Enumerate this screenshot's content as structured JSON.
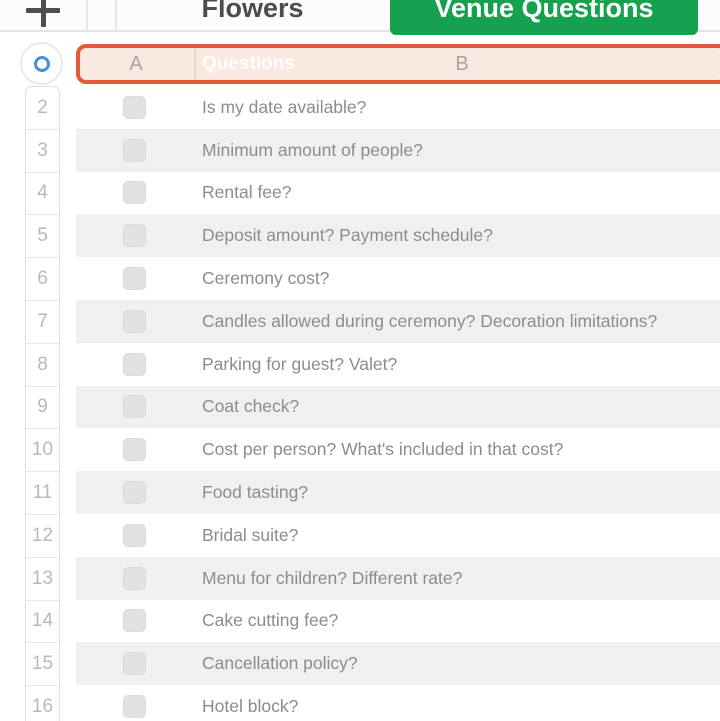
{
  "tabbar": {
    "tabs": [
      {
        "label": "Flowers",
        "active": false
      },
      {
        "label": "Venue Questions",
        "active": true
      }
    ]
  },
  "spreadsheet": {
    "column_letters": {
      "a": "A",
      "b": "B"
    },
    "header_title": "Questions",
    "rows": [
      {
        "number": "2",
        "question": "Is my date available?",
        "checked": false
      },
      {
        "number": "3",
        "question": "Minimum amount of people?",
        "checked": false
      },
      {
        "number": "4",
        "question": "Rental fee?",
        "checked": false
      },
      {
        "number": "5",
        "question": "Deposit amount? Payment schedule?",
        "checked": false
      },
      {
        "number": "6",
        "question": "Ceremony cost?",
        "checked": false
      },
      {
        "number": "7",
        "question": "Candles allowed during ceremony? Decoration limitations?",
        "checked": false
      },
      {
        "number": "8",
        "question": "Parking for guest? Valet?",
        "checked": false
      },
      {
        "number": "9",
        "question": "Coat check?",
        "checked": false
      },
      {
        "number": "10",
        "question": "Cost per person? What's included in that cost?",
        "checked": false
      },
      {
        "number": "11",
        "question": "Food tasting?",
        "checked": false
      },
      {
        "number": "12",
        "question": "Bridal suite?",
        "checked": false
      },
      {
        "number": "13",
        "question": "Menu for children? Different rate?",
        "checked": false
      },
      {
        "number": "14",
        "question": "Cake cutting fee?",
        "checked": false
      },
      {
        "number": "15",
        "question": "Cancellation policy?",
        "checked": false
      },
      {
        "number": "16",
        "question": "Hotel block?",
        "checked": false
      }
    ]
  },
  "icons": {
    "add_sheet": "plus-icon",
    "table_handle": "selection-circle-icon"
  },
  "colors": {
    "active_tab_green": "#16A14E",
    "selection_orange": "#E4593A",
    "selection_fill": "#FAE9E1",
    "zebra_gray": "#F1F0EF",
    "handle_blue": "#4A8FD3",
    "row_text_gray": "#8C8C8C"
  }
}
